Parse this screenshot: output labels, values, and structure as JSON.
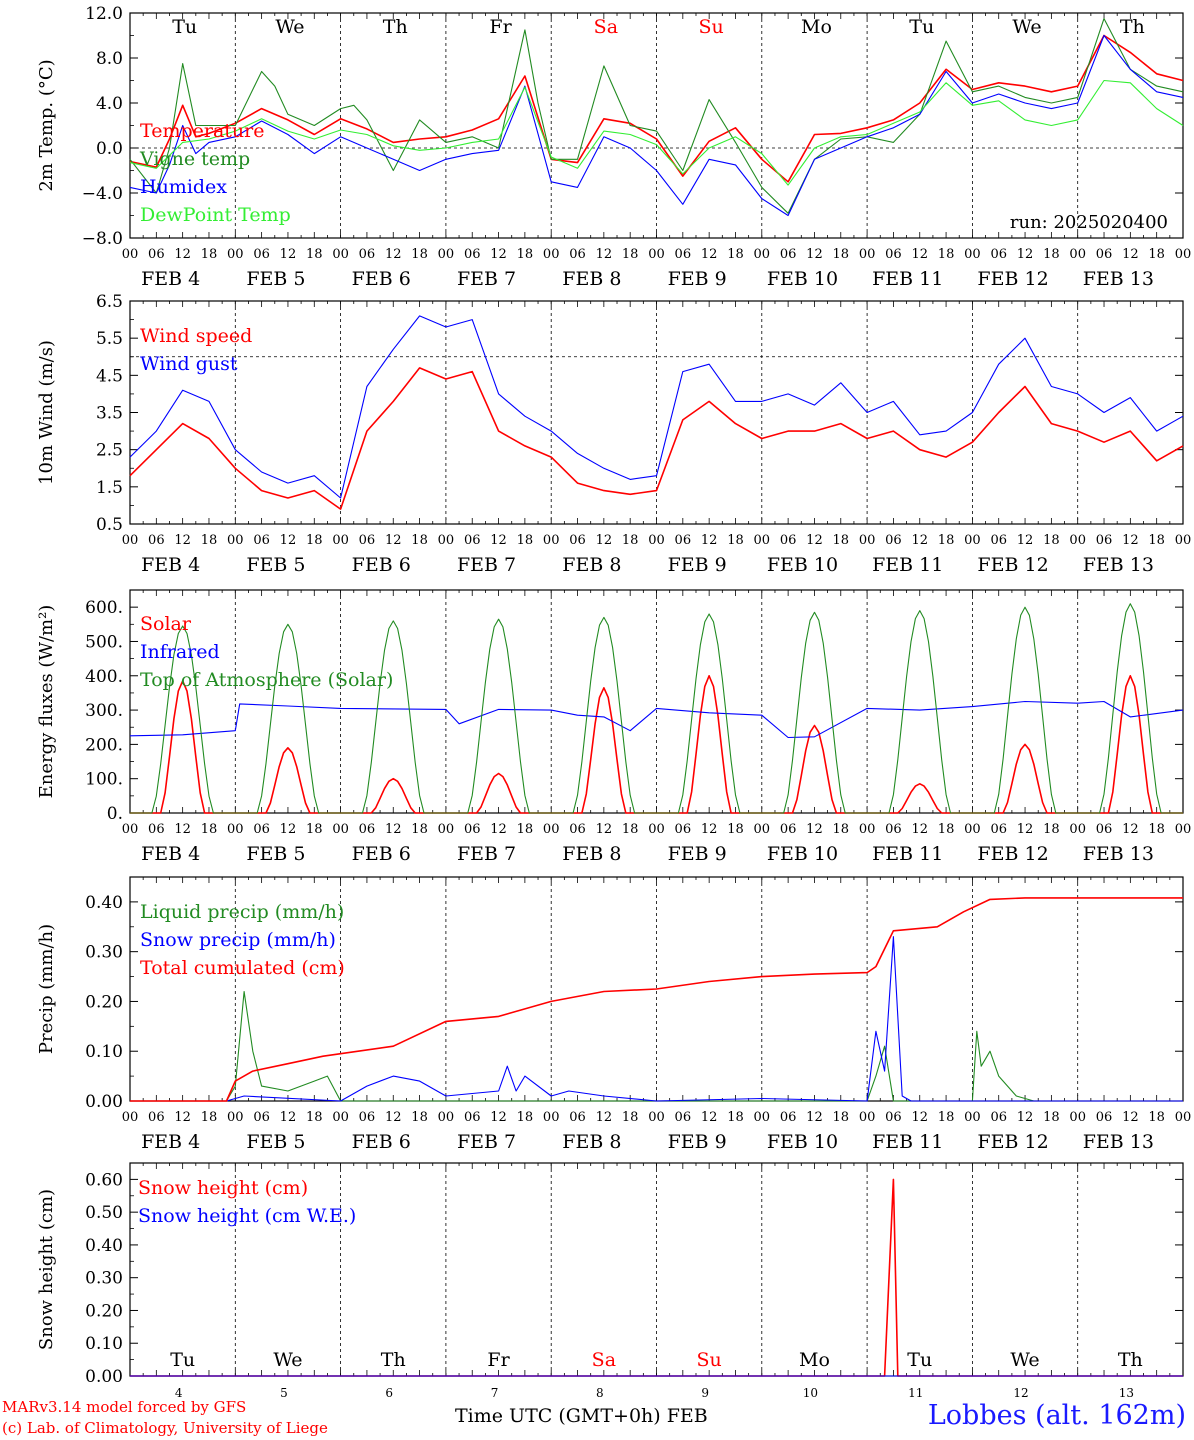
{
  "colors": {
    "red": "#ff0000",
    "green": "#228b22",
    "blue": "#0000ff",
    "lightgreen": "#33ee33",
    "weekend": "#ff0000",
    "text": "#000000"
  },
  "x_hour_labels": [
    "00",
    "06",
    "12",
    "18"
  ],
  "date_labels": [
    "FEB  4",
    "FEB  5",
    "FEB  6",
    "FEB  7",
    "FEB  8",
    "FEB  9",
    "FEB 10",
    "FEB 11",
    "FEB 12",
    "FEB 13"
  ],
  "days": [
    {
      "abbr": "Tu",
      "num": "4",
      "weekend": false
    },
    {
      "abbr": "We",
      "num": "5",
      "weekend": false
    },
    {
      "abbr": "Th",
      "num": "6",
      "weekend": false
    },
    {
      "abbr": "Fr",
      "num": "7",
      "weekend": false
    },
    {
      "abbr": "Sa",
      "num": "8",
      "weekend": true
    },
    {
      "abbr": "Su",
      "num": "9",
      "weekend": true
    },
    {
      "abbr": "Mo",
      "num": "10",
      "weekend": false
    },
    {
      "abbr": "Tu",
      "num": "11",
      "weekend": false
    },
    {
      "abbr": "We",
      "num": "12",
      "weekend": false
    },
    {
      "abbr": "Th",
      "num": "13",
      "weekend": false
    }
  ],
  "footer": {
    "credit1": "MARv3.14 model forced by GFS",
    "credit2": "(c) Lab. of Climatology, University of Liege",
    "xtitle": "Time UTC (GMT+0h) FEB",
    "station": "Lobbes (alt. 162m)"
  },
  "chart_data": [
    {
      "id": "temp",
      "type": "line",
      "ylabel": "2m Temp. (°C)",
      "ylim": [
        -8,
        12
      ],
      "yticks": [
        -8,
        -4,
        0,
        4,
        8,
        12
      ],
      "ytick_labels": [
        "−8.0",
        "−4.0",
        "0.0",
        "4.0",
        "8.0",
        "12.0"
      ],
      "refline": 0,
      "x_unit": "hours since FEB 4 00 UTC",
      "run_label": "run: 2025020400",
      "series": [
        {
          "name": "Temperature",
          "color": "#ff0000",
          "x": [
            0,
            6,
            9,
            12,
            15,
            18,
            24,
            30,
            36,
            42,
            48,
            54,
            60,
            66,
            72,
            78,
            84,
            90,
            96,
            102,
            108,
            114,
            120,
            126,
            132,
            138,
            144,
            150,
            156,
            162,
            168,
            174,
            180,
            186,
            192,
            198,
            204,
            210,
            216,
            222,
            228,
            234,
            240
          ],
          "y": [
            -1.2,
            -1.7,
            0.8,
            3.8,
            1.0,
            1.3,
            2.2,
            3.5,
            2.5,
            1.2,
            2.6,
            1.7,
            0.5,
            0.8,
            1.0,
            1.6,
            2.6,
            6.4,
            -1.0,
            -1.3,
            2.6,
            2.2,
            0.8,
            -2.5,
            0.6,
            1.8,
            -1.0,
            -3.0,
            1.2,
            1.3,
            1.8,
            2.5,
            4.0,
            7.0,
            5.2,
            5.8,
            5.5,
            5.0,
            5.5,
            10.0,
            8.5,
            6.6,
            6.0
          ]
        },
        {
          "name": "Vigne temp",
          "color": "#228b22",
          "x": [
            0,
            6,
            9,
            12,
            15,
            18,
            24,
            30,
            33,
            36,
            42,
            48,
            51,
            54,
            60,
            66,
            72,
            78,
            84,
            90,
            93,
            96,
            102,
            108,
            114,
            120,
            126,
            132,
            138,
            144,
            150,
            156,
            162,
            168,
            174,
            180,
            186,
            192,
            198,
            204,
            210,
            216,
            222,
            228,
            234,
            240
          ],
          "y": [
            -1.0,
            -4.0,
            0.0,
            7.5,
            2.0,
            2.0,
            2.0,
            6.8,
            5.5,
            3.0,
            2.0,
            3.5,
            3.8,
            2.5,
            -2.0,
            2.5,
            0.5,
            1.0,
            0.0,
            10.5,
            4.0,
            -1.0,
            -1.0,
            7.3,
            2.0,
            1.5,
            -2.0,
            4.3,
            0.5,
            -3.5,
            -5.8,
            -1.0,
            0.8,
            1.0,
            0.5,
            3.0,
            9.5,
            5.0,
            5.5,
            4.5,
            4.0,
            4.5,
            11.5,
            7.0,
            5.5,
            5.0
          ]
        },
        {
          "name": "Humidex",
          "color": "#0000ff",
          "x": [
            0,
            6,
            9,
            12,
            15,
            18,
            24,
            30,
            36,
            42,
            48,
            54,
            60,
            66,
            72,
            78,
            84,
            90,
            96,
            102,
            108,
            114,
            120,
            126,
            132,
            138,
            144,
            150,
            156,
            162,
            168,
            174,
            180,
            186,
            192,
            198,
            204,
            210,
            216,
            222,
            228,
            234,
            240
          ],
          "y": [
            -3.5,
            -4.0,
            -1.5,
            2.0,
            -0.5,
            0.5,
            1.0,
            2.4,
            1.2,
            -0.5,
            1.0,
            0.0,
            -1.0,
            -2.0,
            -1.0,
            -0.5,
            -0.2,
            5.5,
            -3.0,
            -3.5,
            1.0,
            0.0,
            -2.0,
            -5.0,
            -1.0,
            -1.5,
            -4.5,
            -6.0,
            -1.0,
            0.0,
            1.0,
            1.8,
            3.0,
            6.8,
            4.0,
            4.8,
            4.0,
            3.5,
            4.0,
            10.0,
            7.0,
            5.0,
            4.5
          ]
        },
        {
          "name": "DewPoint Temp",
          "color": "#33ee33",
          "x": [
            0,
            6,
            12,
            18,
            24,
            30,
            36,
            42,
            48,
            54,
            60,
            66,
            72,
            78,
            84,
            90,
            96,
            102,
            108,
            114,
            120,
            126,
            132,
            138,
            144,
            150,
            156,
            162,
            168,
            174,
            180,
            186,
            192,
            198,
            204,
            210,
            216,
            222,
            228,
            234,
            240
          ],
          "y": [
            -1.3,
            -1.8,
            0.5,
            0.8,
            1.5,
            2.6,
            1.5,
            0.8,
            1.6,
            1.2,
            0.2,
            -0.2,
            0.0,
            0.5,
            0.8,
            5.4,
            -0.8,
            -1.8,
            1.5,
            1.2,
            0.3,
            -2.3,
            0.0,
            1.0,
            -0.5,
            -3.3,
            0.0,
            1.0,
            1.2,
            2.2,
            3.2,
            5.8,
            3.8,
            4.2,
            2.5,
            2.0,
            2.5,
            6.0,
            5.8,
            3.5,
            2.0
          ]
        }
      ]
    },
    {
      "id": "wind",
      "type": "line",
      "ylabel": "10m Wind (m/s)",
      "ylim": [
        0.5,
        6.5
      ],
      "yticks": [
        0.5,
        1.5,
        2.5,
        3.5,
        4.5,
        5.5,
        6.5
      ],
      "ytick_labels": [
        "0.5",
        "1.5",
        "2.5",
        "3.5",
        "4.5",
        "5.5",
        "6.5"
      ],
      "refline": 5.0,
      "series": [
        {
          "name": "Wind speed",
          "color": "#ff0000",
          "x": [
            0,
            6,
            12,
            18,
            24,
            30,
            36,
            42,
            48,
            54,
            60,
            66,
            72,
            78,
            84,
            90,
            96,
            102,
            108,
            114,
            120,
            126,
            132,
            138,
            144,
            150,
            156,
            162,
            168,
            174,
            180,
            186,
            192,
            198,
            204,
            210,
            216,
            222,
            228,
            234,
            240
          ],
          "y": [
            1.8,
            2.5,
            3.2,
            2.8,
            2.0,
            1.4,
            1.2,
            1.4,
            0.9,
            3.0,
            3.8,
            4.7,
            4.4,
            4.6,
            3.0,
            2.6,
            2.3,
            1.6,
            1.4,
            1.3,
            1.4,
            3.3,
            3.8,
            3.2,
            2.8,
            3.0,
            3.0,
            3.2,
            2.8,
            3.0,
            2.5,
            2.3,
            2.7,
            3.5,
            4.2,
            3.2,
            3.0,
            2.7,
            3.0,
            2.2,
            2.6
          ]
        },
        {
          "name": "Wind gust",
          "color": "#0000ff",
          "x": [
            0,
            6,
            12,
            18,
            24,
            30,
            36,
            42,
            48,
            54,
            60,
            66,
            72,
            78,
            84,
            90,
            96,
            102,
            108,
            114,
            120,
            126,
            132,
            138,
            144,
            150,
            156,
            162,
            168,
            174,
            180,
            186,
            192,
            198,
            204,
            210,
            216,
            222,
            228,
            234,
            240
          ],
          "y": [
            2.3,
            3.0,
            4.1,
            3.8,
            2.5,
            1.9,
            1.6,
            1.8,
            1.2,
            4.2,
            5.2,
            6.1,
            5.8,
            6.0,
            4.0,
            3.4,
            3.0,
            2.4,
            2.0,
            1.7,
            1.8,
            4.6,
            4.8,
            3.8,
            3.8,
            4.0,
            3.7,
            4.3,
            3.5,
            3.8,
            2.9,
            3.0,
            3.5,
            4.8,
            5.5,
            4.2,
            4.0,
            3.5,
            3.9,
            3.0,
            3.4
          ]
        }
      ]
    },
    {
      "id": "energy",
      "type": "line",
      "ylabel": "Energy fluxes (W/m²)",
      "ylim": [
        0,
        650
      ],
      "yticks": [
        0,
        100,
        200,
        300,
        400,
        500,
        600
      ],
      "ytick_labels": [
        "0.",
        "100.",
        "200.",
        "300.",
        "400.",
        "500.",
        "600."
      ],
      "series": [
        {
          "name": "Solar",
          "color": "#ff0000",
          "daily_peak_hour": 12,
          "daily_halfwidth": 5,
          "peaks": [
            385,
            190,
            100,
            115,
            365,
            400,
            255,
            85,
            200,
            400
          ]
        },
        {
          "name": "Infrared",
          "color": "#0000ff",
          "x": [
            0,
            12,
            24,
            25,
            36,
            48,
            72,
            75,
            84,
            96,
            102,
            108,
            114,
            120,
            132,
            144,
            150,
            156,
            168,
            180,
            192,
            204,
            216,
            222,
            228,
            240
          ],
          "y": [
            225,
            228,
            240,
            318,
            312,
            305,
            302,
            260,
            302,
            300,
            285,
            280,
            240,
            305,
            292,
            285,
            220,
            222,
            305,
            300,
            310,
            325,
            320,
            325,
            280,
            300
          ]
        },
        {
          "name": "Top of Atmosphere (Solar)",
          "color": "#228b22",
          "daily_peak_hour": 12,
          "daily_halfwidth": 7,
          "peaks": [
            545,
            550,
            560,
            565,
            570,
            580,
            585,
            590,
            600,
            610
          ]
        }
      ]
    },
    {
      "id": "precip",
      "type": "line",
      "ylabel": "Precip (mm/h)",
      "ylim": [
        0,
        0.45
      ],
      "yticks": [
        0,
        0.1,
        0.2,
        0.3,
        0.4
      ],
      "ytick_labels": [
        "0.00",
        "0.10",
        "0.20",
        "0.30",
        "0.40"
      ],
      "series": [
        {
          "name": "Liquid precip (mm/h)",
          "color": "#228b22",
          "x": [
            0,
            22,
            24,
            26,
            28,
            30,
            36,
            42,
            45,
            48,
            60,
            72,
            96,
            120,
            168,
            170,
            172,
            174,
            192,
            193,
            194,
            196,
            198,
            202,
            206,
            240
          ],
          "y": [
            0,
            0,
            0.03,
            0.22,
            0.1,
            0.03,
            0.02,
            0.04,
            0.05,
            0.0,
            0.0,
            0.0,
            0.0,
            0.0,
            0.0,
            0.05,
            0.11,
            0.0,
            0.0,
            0.14,
            0.07,
            0.1,
            0.05,
            0.01,
            0.0,
            0.0
          ]
        },
        {
          "name": "Snow precip (mm/h)",
          "color": "#0000ff",
          "x": [
            0,
            22,
            26,
            48,
            54,
            60,
            66,
            72,
            84,
            86,
            88,
            90,
            96,
            100,
            108,
            120,
            144,
            168,
            170,
            172,
            174,
            176,
            178,
            190,
            240
          ],
          "y": [
            0,
            0,
            0.01,
            0.0,
            0.03,
            0.05,
            0.04,
            0.01,
            0.02,
            0.07,
            0.02,
            0.05,
            0.01,
            0.02,
            0.01,
            0.0,
            0.005,
            0.0,
            0.14,
            0.06,
            0.33,
            0.01,
            0.0,
            0.0,
            0.0
          ]
        },
        {
          "name": "Total cumulated (cm)",
          "color": "#ff0000",
          "x": [
            0,
            22,
            24,
            28,
            36,
            44,
            48,
            60,
            72,
            84,
            96,
            108,
            120,
            132,
            144,
            156,
            168,
            170,
            174,
            184,
            190,
            196,
            204,
            240
          ],
          "y": [
            0,
            0,
            0.04,
            0.06,
            0.075,
            0.09,
            0.095,
            0.11,
            0.16,
            0.17,
            0.2,
            0.22,
            0.225,
            0.24,
            0.25,
            0.255,
            0.258,
            0.27,
            0.342,
            0.35,
            0.38,
            0.405,
            0.408,
            0.408
          ]
        }
      ]
    },
    {
      "id": "snow",
      "type": "line",
      "ylabel": "Snow height (cm)",
      "ylim": [
        0,
        0.65
      ],
      "yticks": [
        0,
        0.1,
        0.2,
        0.3,
        0.4,
        0.5,
        0.6
      ],
      "ytick_labels": [
        "0.00",
        "0.10",
        "0.20",
        "0.30",
        "0.40",
        "0.50",
        "0.60"
      ],
      "series": [
        {
          "name": "Snow height (cm)",
          "color": "#ff0000",
          "x": [
            0,
            172,
            173,
            174,
            175,
            240
          ],
          "y": [
            0,
            0,
            0.3,
            0.6,
            0,
            0
          ]
        },
        {
          "name": "Snow height (cm W.E.)",
          "color": "#0000ff",
          "x": [
            0,
            240
          ],
          "y": [
            0,
            0
          ]
        }
      ]
    }
  ]
}
